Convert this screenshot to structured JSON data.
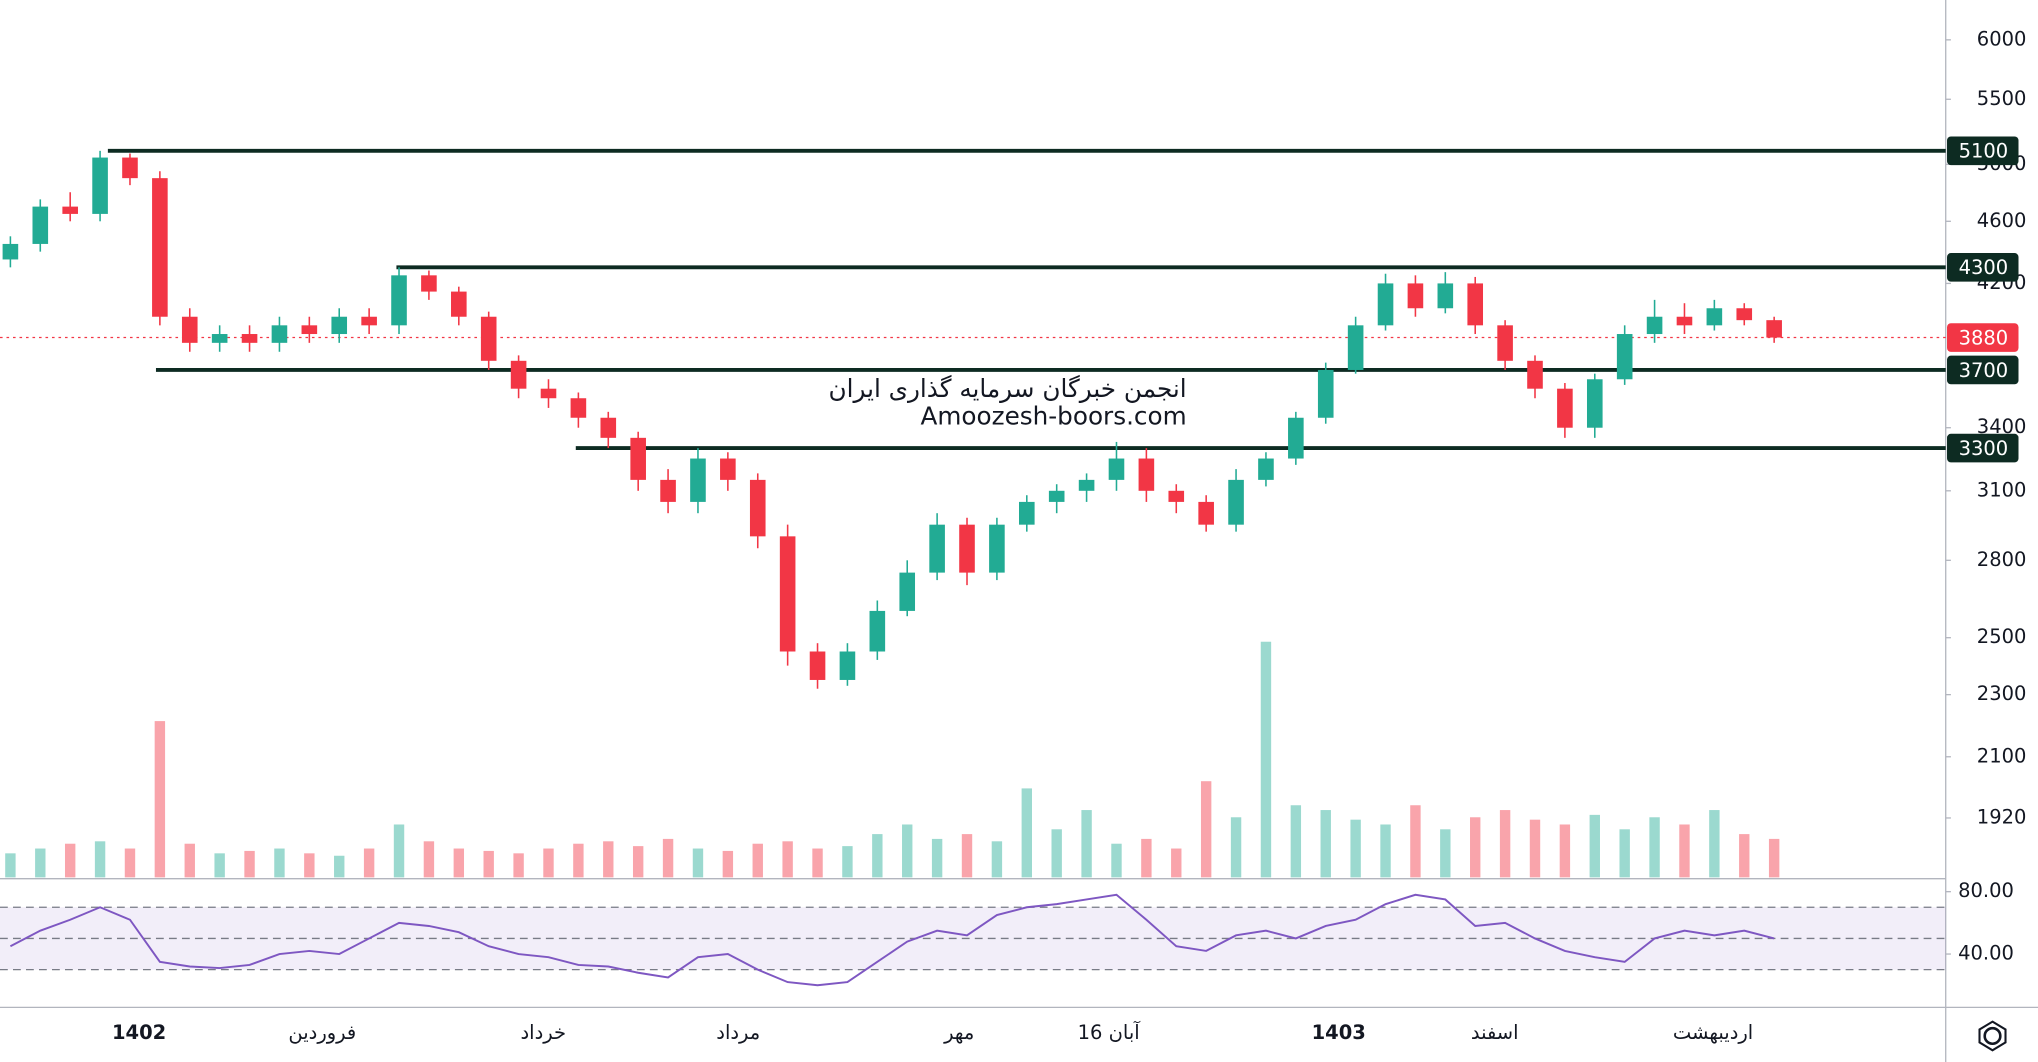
{
  "chart_data": {
    "type": "candlestick",
    "log_scale": true,
    "ylim": [
      1760,
      6360
    ],
    "yticks": [
      1920,
      2100,
      2300,
      2500,
      2800,
      3100,
      3400,
      4200,
      4600,
      5000,
      5500,
      6000
    ],
    "colors": {
      "up": "#22ab94",
      "down": "#f23645",
      "level": "#0d2b22"
    },
    "open": [
      4350,
      4450,
      4700,
      4650,
      5050,
      4900,
      4000,
      3850,
      3900,
      3850,
      3950,
      3900,
      4000,
      3950,
      4250,
      4150,
      4000,
      3750,
      3600,
      3550,
      3450,
      3350,
      3150,
      3050,
      3250,
      3150,
      2900,
      2450,
      2350,
      2450,
      2600,
      2750,
      2950,
      2750,
      2950,
      3050,
      3100,
      3150,
      3250,
      3100,
      3050,
      2950,
      3150,
      3250,
      3450,
      3700,
      3950,
      4200,
      4050,
      4200,
      3950,
      3750,
      3600,
      3400,
      3650,
      3900,
      4000,
      3950,
      4050,
      3980
    ],
    "high": [
      4500,
      4750,
      4800,
      5100,
      5080,
      4950,
      4050,
      3950,
      3950,
      4000,
      4000,
      4050,
      4050,
      4300,
      4280,
      4180,
      4030,
      3780,
      3650,
      3580,
      3480,
      3380,
      3200,
      3300,
      3280,
      3180,
      2950,
      2480,
      2480,
      2640,
      2800,
      3000,
      2980,
      2980,
      3080,
      3130,
      3180,
      3330,
      3300,
      3130,
      3080,
      3200,
      3280,
      3480,
      3740,
      4000,
      4260,
      4250,
      4270,
      4240,
      3980,
      3780,
      3630,
      3680,
      3950,
      4100,
      4080,
      4100,
      4080,
      4000
    ],
    "low": [
      4300,
      4400,
      4600,
      4600,
      4850,
      3950,
      3800,
      3800,
      3800,
      3800,
      3850,
      3850,
      3900,
      3900,
      4100,
      3950,
      3700,
      3550,
      3500,
      3400,
      3300,
      3100,
      3000,
      3000,
      3100,
      2850,
      2400,
      2320,
      2330,
      2420,
      2580,
      2720,
      2700,
      2720,
      2920,
      3000,
      3050,
      3100,
      3050,
      3000,
      2920,
      2920,
      3120,
      3220,
      3420,
      3680,
      3920,
      4000,
      4020,
      3900,
      3700,
      3550,
      3350,
      3350,
      3620,
      3850,
      3900,
      3920,
      3950,
      3850
    ],
    "close": [
      4450,
      4700,
      4650,
      5050,
      4900,
      4000,
      3850,
      3900,
      3850,
      3950,
      3900,
      4000,
      3950,
      4250,
      4150,
      4000,
      3750,
      3600,
      3550,
      3450,
      3350,
      3150,
      3050,
      3250,
      3150,
      2900,
      2450,
      2350,
      2450,
      2600,
      2750,
      2950,
      2750,
      2950,
      3050,
      3100,
      3150,
      3250,
      3100,
      3050,
      2950,
      3150,
      3250,
      3450,
      3700,
      3950,
      4200,
      4050,
      4200,
      3950,
      3750,
      3600,
      3400,
      3650,
      3900,
      4000,
      3950,
      4050,
      3980,
      3880
    ],
    "volume": [
      10,
      12,
      14,
      15,
      12,
      65,
      14,
      10,
      11,
      12,
      10,
      9,
      12,
      22,
      15,
      12,
      11,
      10,
      12,
      14,
      15,
      13,
      16,
      12,
      11,
      14,
      15,
      12,
      13,
      18,
      22,
      16,
      18,
      15,
      37,
      20,
      28,
      14,
      16,
      12,
      40,
      25,
      98,
      30,
      28,
      24,
      22,
      30,
      20,
      25,
      28,
      24,
      22,
      26,
      20,
      25,
      22,
      28,
      18,
      16
    ],
    "volume_ylim": [
      0,
      100
    ],
    "levels": [
      5100,
      4300,
      3700,
      3300
    ],
    "last_price": 3880,
    "annotations": [
      "انجمن خبرگان سرمایه گذاری ایران",
      "Amoozesh-boors.com"
    ],
    "x_labels": [
      "1402",
      "فروردین",
      "خرداد",
      "مرداد",
      "مهر",
      "16 آبان",
      "1403",
      "اسفند",
      "اردیبهشت"
    ],
    "rsi": {
      "values": [
        45,
        55,
        62,
        70,
        62,
        35,
        32,
        31,
        33,
        40,
        42,
        40,
        50,
        60,
        58,
        54,
        45,
        40,
        38,
        33,
        32,
        28,
        25,
        38,
        40,
        30,
        22,
        20,
        22,
        35,
        48,
        55,
        52,
        65,
        70,
        72,
        75,
        78,
        62,
        45,
        42,
        52,
        55,
        50,
        58,
        62,
        72,
        78,
        75,
        58,
        60,
        50,
        42,
        38,
        35,
        50,
        55,
        52,
        55,
        50
      ],
      "color": "#7e57c2",
      "ylim": [
        5.8,
        87.5
      ],
      "yticks": [
        {
          "value": 80,
          "label": "80.00"
        },
        {
          "value": 40,
          "label": "40.00"
        }
      ],
      "bands": [
        70,
        50,
        30
      ]
    }
  }
}
